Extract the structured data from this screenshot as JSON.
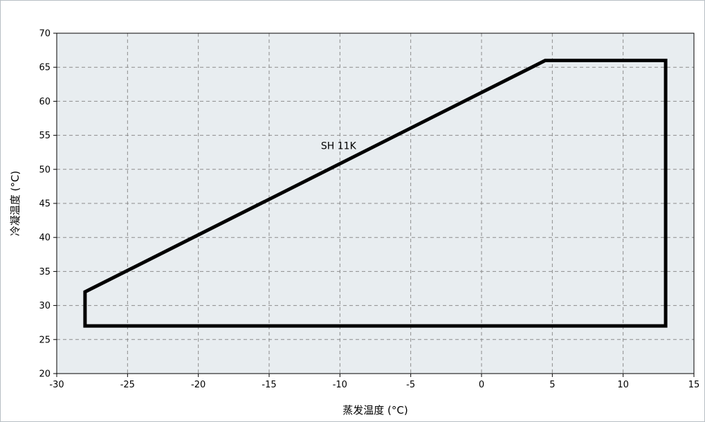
{
  "chart_data": {
    "type": "line",
    "xlabel": "蒸发温度 (°C)",
    "ylabel": "冷凝温度 (°C)",
    "xlim": [
      -30,
      15
    ],
    "ylim": [
      20,
      70
    ],
    "x_ticks": [
      -30,
      -25,
      -20,
      -15,
      -10,
      -5,
      0,
      5,
      10,
      15
    ],
    "y_ticks": [
      20,
      25,
      30,
      35,
      40,
      45,
      50,
      55,
      60,
      65,
      70
    ],
    "grid": true,
    "legend": "none",
    "series": [
      {
        "closed": true,
        "x": [
          -28,
          -28,
          13,
          13,
          4.5,
          -28
        ],
        "y": [
          27,
          32,
          27,
          66,
          66,
          32
        ],
        "order": "(-28,27) (-28,32) (4.5,66) (13,66) (13,27) closed"
      }
    ],
    "annotations": [
      {
        "text": "SH 11K",
        "x": -10,
        "y": 53.5
      }
    ]
  },
  "colors": {
    "plot_background": "#e8edf0",
    "grid": "#8c8c8c",
    "line": "#000000",
    "frame": "#b7bec3"
  }
}
